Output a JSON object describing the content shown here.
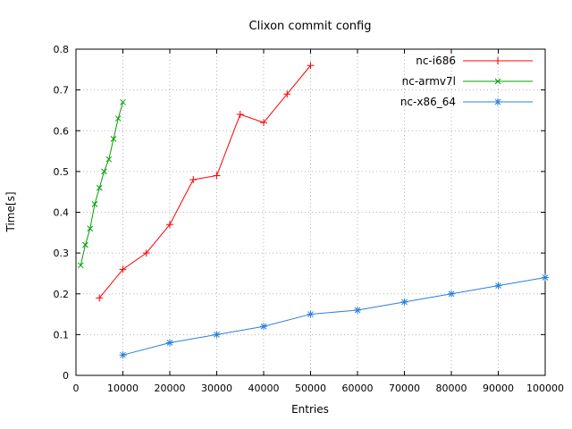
{
  "chart_data": {
    "type": "line",
    "title": "Clixon commit config",
    "xlabel": "Entries",
    "ylabel": "Time[s]",
    "xlim": [
      0,
      100000
    ],
    "ylim": [
      0,
      0.8
    ],
    "xtick_step": 10000,
    "ytick_step": 0.1,
    "grid": true,
    "grid_style": "dotted",
    "legend_position": "top-right-inside",
    "background_color": "#ffffff",
    "border_color": "#000000",
    "grid_color": "#b5b5b5",
    "series": [
      {
        "name": "nc-i686",
        "color": "#ff0000",
        "marker": "plus",
        "x": [
          5000,
          10000,
          15000,
          20000,
          25000,
          30000,
          35000,
          40000,
          45000,
          50000
        ],
        "y": [
          0.19,
          0.26,
          0.3,
          0.37,
          0.48,
          0.49,
          0.64,
          0.62,
          0.69,
          0.76
        ]
      },
      {
        "name": "nc-armv7l",
        "color": "#00a000",
        "marker": "cross",
        "x": [
          1000,
          2000,
          3000,
          4000,
          5000,
          6000,
          7000,
          8000,
          9000,
          10000
        ],
        "y": [
          0.27,
          0.32,
          0.36,
          0.42,
          0.46,
          0.5,
          0.53,
          0.58,
          0.63,
          0.67
        ]
      },
      {
        "name": "nc-x86_64",
        "color": "#2980d9",
        "marker": "star",
        "x": [
          10000,
          20000,
          30000,
          40000,
          50000,
          60000,
          70000,
          80000,
          90000,
          100000
        ],
        "y": [
          0.05,
          0.08,
          0.1,
          0.12,
          0.15,
          0.16,
          0.18,
          0.2,
          0.22,
          0.24
        ]
      }
    ]
  }
}
